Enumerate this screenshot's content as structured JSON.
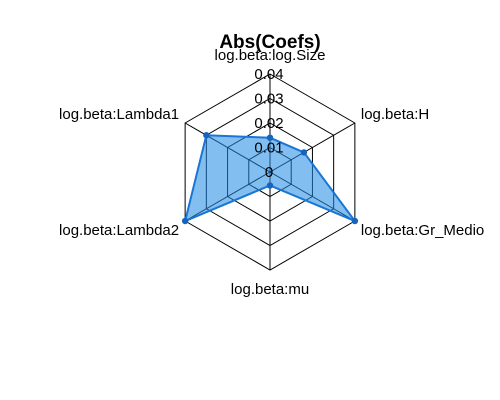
{
  "chart_data": {
    "type": "radar",
    "title": "Abs(Coefs)",
    "axes": [
      "log.beta:log.Size",
      "log.beta:H",
      "log.beta:Gr_Medio",
      "log.beta:mu",
      "log.beta:Lambda2",
      "log.beta:Lambda1"
    ],
    "values": [
      0.014,
      0.016,
      0.04,
      0.0055,
      0.04,
      0.03
    ],
    "range": [
      0,
      0.04
    ],
    "ticks": [
      0,
      0.01,
      0.02,
      0.03,
      0.04
    ],
    "tick_labels": [
      "0",
      "0.01",
      "0.02",
      "0.03",
      "0.04"
    ],
    "colors": {
      "fill": "#1e88e5",
      "line": "#1976d2",
      "point": "#1565c0"
    }
  }
}
